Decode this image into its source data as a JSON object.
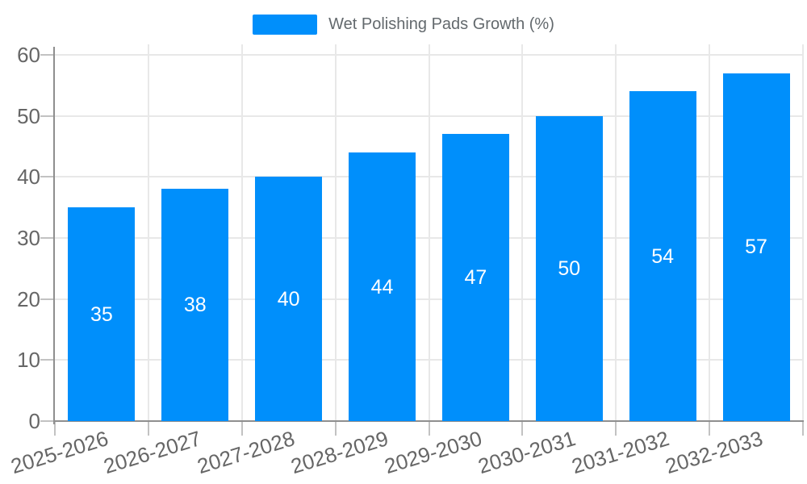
{
  "legend": {
    "label": "Wet Polishing Pads Growth (%)"
  },
  "chart_data": {
    "type": "bar",
    "categories": [
      "2025-2026",
      "2026-2027",
      "2027-2028",
      "2028-2029",
      "2029-2030",
      "2030-2031",
      "2031-2032",
      "2032-2033"
    ],
    "values": [
      35,
      38,
      40,
      44,
      47,
      50,
      54,
      57
    ],
    "series": [
      {
        "name": "Wet Polishing Pads Growth (%)",
        "values": [
          35,
          38,
          40,
          44,
          47,
          50,
          54,
          57
        ]
      }
    ],
    "title": "",
    "xlabel": "",
    "ylabel": "",
    "ylim": [
      0,
      60
    ],
    "yticks": [
      0,
      10,
      20,
      30,
      40,
      50,
      60
    ],
    "grid": true,
    "legend_position": "top",
    "data_labels": true,
    "data_label_position": "center"
  },
  "colors": {
    "bar": "#008FFB",
    "background": "#ffffff",
    "grid": "#e8e8e8",
    "axis_line": "#8f8f8f",
    "tick": "#c2c2c2",
    "axis_label": "#666666",
    "legend_text": "#63696d",
    "value_label": "#ffffff"
  }
}
